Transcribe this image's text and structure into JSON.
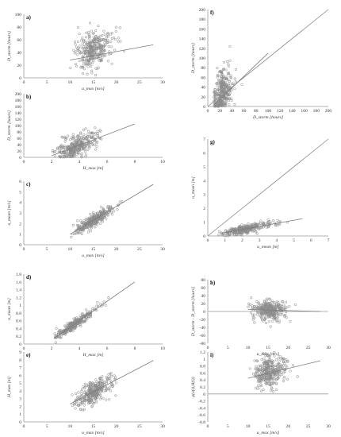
{
  "chart_data": [
    {
      "id": "a",
      "type": "scatter",
      "panel_label": "a)",
      "xlabel": "u_max [m/s]",
      "ylabel": "D_storm [hours]",
      "xlim": [
        0,
        30
      ],
      "ylim": [
        0,
        100
      ],
      "xticks": [
        0,
        5,
        10,
        15,
        20,
        25,
        30
      ],
      "yticks": [
        0,
        20,
        40,
        60,
        80,
        100
      ],
      "trend": {
        "x": [
          10,
          28
        ],
        "y": [
          28,
          52
        ]
      },
      "cloud": {
        "x_center": 14,
        "x_spread": 2.5,
        "x_min": 10,
        "x_max": 28,
        "y_base": 20,
        "y_slope": 1.6,
        "y_noise": 14,
        "n": 340
      }
    },
    {
      "id": "b",
      "type": "scatter",
      "panel_label": "b)",
      "xlabel": "H_max [m]",
      "ylabel": "D_storm [hours]",
      "xlim": [
        0,
        10
      ],
      "ylim": [
        0,
        200
      ],
      "xticks": [
        0,
        2,
        4,
        6,
        8,
        10
      ],
      "yticks": [
        0,
        20,
        40,
        60,
        80,
        100,
        120,
        140,
        160,
        180,
        200
      ],
      "trend": {
        "x": [
          2,
          8
        ],
        "y": [
          5,
          105
        ]
      },
      "cloud": {
        "x_center": 3.3,
        "x_spread": 0.9,
        "x_min": 2,
        "x_max": 8,
        "y_base": -25,
        "y_slope": 16,
        "y_noise": 18,
        "n": 340
      }
    },
    {
      "id": "c",
      "type": "scatter",
      "panel_label": "c)",
      "xlabel": "u_max [m/s]",
      "ylabel": "u_mean [m/s]",
      "xlim": [
        0,
        30
      ],
      "ylim": [
        0,
        6
      ],
      "xticks": [
        0,
        5,
        10,
        15,
        20,
        25,
        30
      ],
      "yticks": [
        0,
        1,
        2,
        3,
        4,
        5,
        6
      ],
      "trend": {
        "x": [
          10,
          28
        ],
        "y": [
          1.0,
          5.7
        ]
      },
      "cloud": {
        "x_center": 14,
        "x_spread": 2.6,
        "x_min": 10,
        "x_max": 28,
        "y_base": -1.6,
        "y_slope": 0.26,
        "y_noise": 0.28,
        "n": 340
      }
    },
    {
      "id": "d",
      "type": "scatter",
      "panel_label": "d)",
      "xlabel": "H_max [m]",
      "ylabel": "u_mean [m]",
      "xlim": [
        0,
        10
      ],
      "ylim": [
        0,
        1.8
      ],
      "xticks": [
        0,
        2,
        4,
        6,
        8,
        10
      ],
      "yticks": [
        0,
        0.2,
        0.4,
        0.6,
        0.8,
        1.0,
        1.2,
        1.4,
        1.6,
        1.8
      ],
      "trend": {
        "x": [
          2.2,
          8
        ],
        "y": [
          0.15,
          1.6
        ]
      },
      "cloud": {
        "x_center": 3.3,
        "x_spread": 0.9,
        "x_min": 2.1,
        "x_max": 7.5,
        "y_base": -0.4,
        "y_slope": 0.25,
        "y_noise": 0.06,
        "n": 340
      }
    },
    {
      "id": "e",
      "type": "scatter",
      "panel_label": "e)",
      "xlabel": "u_max [m/s]",
      "ylabel": "H_max [m]",
      "xlim": [
        0,
        30
      ],
      "ylim": [
        0,
        9
      ],
      "xticks": [
        0,
        5,
        10,
        15,
        20,
        25,
        30
      ],
      "yticks": [
        0,
        1,
        2,
        3,
        4,
        5,
        6,
        7,
        8,
        9
      ],
      "trend": {
        "x": [
          10,
          28
        ],
        "y": [
          2.3,
          7.9
        ]
      },
      "cloud": {
        "x_center": 14,
        "x_spread": 2.6,
        "x_min": 10,
        "x_max": 28,
        "y_base": -0.8,
        "y_slope": 0.31,
        "y_noise": 0.7,
        "n": 340
      }
    },
    {
      "id": "f",
      "type": "scatter",
      "panel_label": "f)",
      "xlabel": "D_storm [hours]",
      "ylabel": "D_storm [hours]",
      "xlim": [
        0,
        200
      ],
      "ylim": [
        0,
        200
      ],
      "xticks": [
        0,
        20,
        40,
        60,
        80,
        100,
        120,
        140,
        160,
        180,
        200
      ],
      "yticks": [
        0,
        20,
        40,
        60,
        80,
        100,
        120,
        140,
        160,
        180,
        200
      ],
      "diagonal": true,
      "trend": {
        "x": [
          12,
          100
        ],
        "y": [
          5,
          110
        ]
      },
      "cloud": {
        "x_center": 20,
        "x_spread": 10,
        "x_min": 10,
        "x_max": 100,
        "y_base": 0,
        "y_slope": 1.1,
        "y_noise": 22,
        "n": 340
      }
    },
    {
      "id": "g",
      "type": "scatter",
      "panel_label": "g)",
      "xlabel": "u_mean [m]",
      "ylabel": "u_mean [m]",
      "xlim": [
        0,
        7
      ],
      "ylim": [
        0,
        7
      ],
      "xticks": [
        0,
        1,
        2,
        3,
        4,
        5,
        6,
        7
      ],
      "yticks": [
        0,
        1,
        2,
        3,
        4,
        5,
        6,
        7
      ],
      "diagonal": true,
      "trend": {
        "x": [
          0.8,
          5.5
        ],
        "y": [
          0.2,
          1.25
        ]
      },
      "cloud": {
        "x_center": 1.8,
        "x_spread": 0.9,
        "x_min": 0.6,
        "x_max": 5.5,
        "y_base": 0,
        "y_slope": 0.23,
        "y_noise": 0.15,
        "n": 340
      }
    },
    {
      "id": "h",
      "type": "scatter",
      "panel_label": "h)",
      "xlabel": "u_max [m/s]",
      "ylabel": "D_storm - D_storm [hours]",
      "xlim": [
        0,
        30
      ],
      "ylim": [
        -80,
        80
      ],
      "xticks": [
        0,
        5,
        10,
        15,
        20,
        25,
        30
      ],
      "yticks": [
        -80,
        -60,
        -40,
        -20,
        0,
        20,
        40,
        60,
        80
      ],
      "trend": {
        "x": [
          10,
          28
        ],
        "y": [
          5,
          0
        ]
      },
      "cloud": {
        "x_center": 14,
        "x_spread": 2.6,
        "x_min": 10,
        "x_max": 28,
        "y_base": 4,
        "y_slope": -0.1,
        "y_noise": 12,
        "n": 340
      }
    },
    {
      "id": "i",
      "type": "scatter",
      "panel_label": "i)",
      "xlabel": "u_max [m/s]",
      "ylabel": "ρ(u(t),H(t))",
      "xlim": [
        0,
        30
      ],
      "ylim": [
        -0.8,
        1.2
      ],
      "xticks": [
        0,
        5,
        10,
        15,
        20,
        25,
        30
      ],
      "yticks": [
        -0.8,
        -0.6,
        -0.4,
        -0.2,
        0,
        0.2,
        0.4,
        0.6,
        0.8,
        1.0,
        1.2
      ],
      "trend": {
        "x": [
          10,
          28
        ],
        "y": [
          0.45,
          0.95
        ]
      },
      "cloud": {
        "x_center": 14,
        "x_spread": 2.6,
        "x_min": 10,
        "x_max": 28,
        "y_base": 0.2,
        "y_slope": 0.028,
        "y_noise": 0.22,
        "n": 340
      }
    }
  ]
}
